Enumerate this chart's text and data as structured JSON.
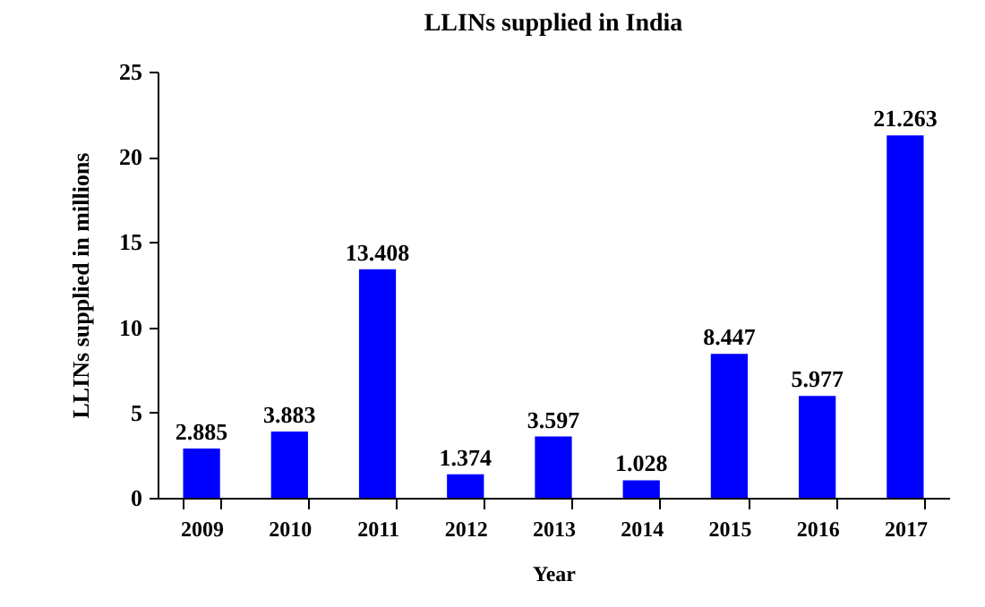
{
  "chart_data": {
    "type": "bar",
    "title": "LLINs supplied in India",
    "xlabel": "Year",
    "ylabel": "LLINs supplied in millions",
    "categories": [
      "2009",
      "2010",
      "2011",
      "2012",
      "2013",
      "2014",
      "2015",
      "2016",
      "2017"
    ],
    "values": [
      2.885,
      3.883,
      13.408,
      1.374,
      3.597,
      1.028,
      8.447,
      5.977,
      21.263
    ],
    "color": "#0000ff",
    "ylim": [
      0,
      25
    ],
    "yticks": [
      0,
      5,
      10,
      15,
      20,
      25
    ],
    "grid": false,
    "data_labels": true
  }
}
